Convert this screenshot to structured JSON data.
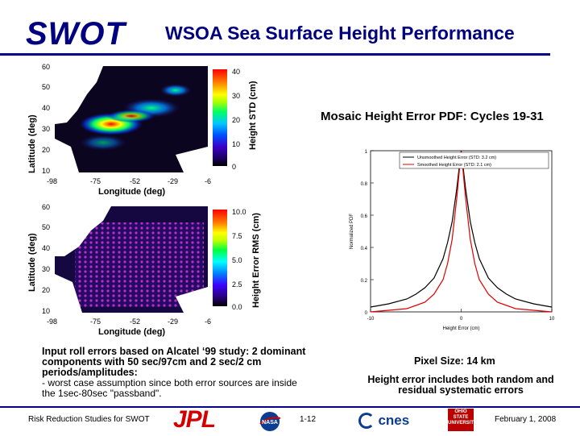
{
  "header": {
    "logo_text": "SWOT",
    "title": "WSOA Sea Surface Height Performance"
  },
  "top_map": {
    "ylabel": "Latitude (deg)",
    "xlabel": "Longitude (deg)",
    "yticks": [
      "60",
      "50",
      "40",
      "30",
      "20",
      "10"
    ],
    "xticks": [
      "-98",
      "-75",
      "-52",
      "-29",
      "-6"
    ],
    "colorbar_label": "Height STD (cm)",
    "colorbar_ticks": [
      "40",
      "30",
      "20",
      "10",
      "0"
    ]
  },
  "bottom_map": {
    "ylabel": "Latitude (deg)",
    "xlabel": "Longitude (deg)",
    "yticks": [
      "60",
      "50",
      "40",
      "30",
      "20",
      "10"
    ],
    "xticks": [
      "-98",
      "-75",
      "-52",
      "-29",
      "-6"
    ],
    "colorbar_label": "Height Error RMS (cm)",
    "colorbar_ticks": [
      "10.0",
      "7.5",
      "5.0",
      "2.5",
      "0.0"
    ]
  },
  "pdf_panel": {
    "title": "Mosaic Height Error PDF: Cycles 19-31"
  },
  "chart_data": {
    "type": "line",
    "title": "Mosaic Height Error PDF: Cycles 19-31",
    "xlabel": "Height Error (cm)",
    "ylabel": "Normalized PDF",
    "xlim": [
      -10,
      10
    ],
    "ylim": [
      0,
      1
    ],
    "xticks": [
      "-10",
      "0",
      "10"
    ],
    "yticks": [
      "0",
      "0.2",
      "0.4",
      "0.6",
      "0.8",
      "1"
    ],
    "legend_position": "top-right",
    "grid": false,
    "x": [
      -10,
      -8,
      -6,
      -5,
      -4,
      -3,
      -2,
      -1.5,
      -1,
      -0.5,
      0,
      0.5,
      1,
      1.5,
      2,
      3,
      4,
      5,
      6,
      8,
      10
    ],
    "series": [
      {
        "name": "Unsmoothed Height Error (STD: 3.2 cm)",
        "color": "#000000",
        "values": [
          0.03,
          0.05,
          0.08,
          0.11,
          0.15,
          0.21,
          0.33,
          0.43,
          0.56,
          0.76,
          1.0,
          0.76,
          0.56,
          0.43,
          0.33,
          0.21,
          0.15,
          0.11,
          0.08,
          0.05,
          0.03
        ]
      },
      {
        "name": "Smoothed Height Error (STD: 2.1 cm)",
        "color": "#e00000",
        "values": [
          0.0,
          0.01,
          0.02,
          0.04,
          0.06,
          0.11,
          0.2,
          0.3,
          0.45,
          0.7,
          1.0,
          0.7,
          0.45,
          0.3,
          0.2,
          0.11,
          0.06,
          0.04,
          0.02,
          0.01,
          0.0
        ]
      }
    ]
  },
  "notes": {
    "left_bold": "Input roll errors based on Alcatel ‘99 study: 2 dominant components with 50 sec/97cm and 2 sec/2 cm periods/amplitudes:",
    "left_normal": "- worst case assumption since both error sources are inside the 1sec-80sec \"passband\".",
    "right_pixel": "Pixel Size: 14 km",
    "right_error": "Height error includes both random and residual systematic errors"
  },
  "footer": {
    "left": "Risk Reduction Studies for SWOT",
    "jpl": "JPL",
    "nasa": "NASA",
    "page": "1-12",
    "cnes": "cnes",
    "osu": "OHIO STATE UNIVERSITY",
    "date": "February 1, 2008"
  }
}
